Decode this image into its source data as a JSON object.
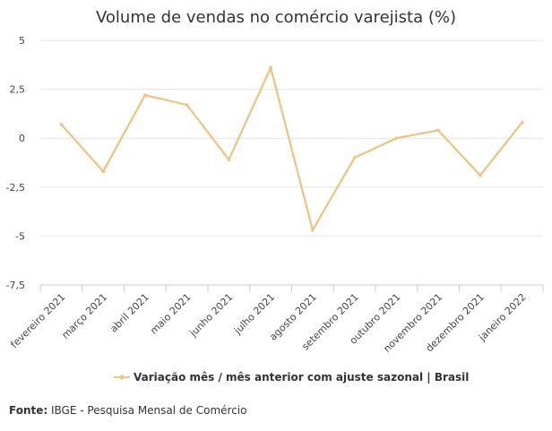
{
  "chart_data": {
    "type": "line",
    "title": "Volume de vendas no comércio varejista (%)",
    "categories": [
      "fevereiro 2021",
      "março 2021",
      "abril 2021",
      "maio 2021",
      "junho 2021",
      "julho 2021",
      "agosto 2021",
      "setembro 2021",
      "outubro 2021",
      "novembro 2021",
      "dezembro 2021",
      "janeiro 2022"
    ],
    "series": [
      {
        "name": "Variação mês / mês anterior com ajuste sazonal | Brasil",
        "values": [
          0.7,
          -1.7,
          2.2,
          1.7,
          -1.1,
          3.6,
          -4.7,
          -1.0,
          0.0,
          0.4,
          -1.9,
          0.8
        ],
        "color": "#f0c27b"
      }
    ],
    "y_ticks": [
      5,
      2.5,
      0,
      -2.5,
      -5,
      -7.5
    ],
    "y_tick_labels": [
      "5",
      "2,5",
      "0",
      "-2,5",
      "-5",
      "-7,5"
    ],
    "ylim": [
      -7.5,
      5
    ],
    "xlabel": "",
    "ylabel": "",
    "grid": true,
    "legend_position": "bottom-center"
  },
  "source": {
    "label": "Fonte:",
    "text": "IBGE - Pesquisa Mensal de Comércio"
  },
  "colors": {
    "line": "#f0c27b",
    "grid": "#e6e6e6",
    "axis": "#cccccc"
  }
}
